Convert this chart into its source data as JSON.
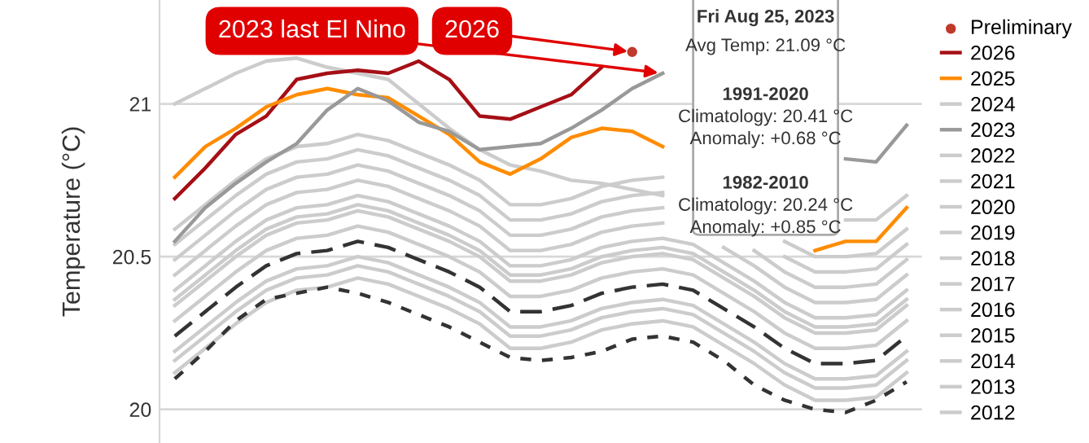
{
  "chart_data": {
    "type": "line",
    "ylabel": "Temperature (°C)",
    "categories": [
      null,
      null,
      null,
      null,
      null,
      null,
      null,
      null,
      null,
      null,
      null,
      null,
      null,
      null,
      null,
      null,
      null,
      null,
      null,
      null,
      null,
      null,
      null,
      null,
      null
    ],
    "ylim": [
      19.89,
      21.34
    ],
    "yticks": [
      20,
      20.5,
      21
    ],
    "grid": "y",
    "legend": "right",
    "tick_labels": "y",
    "series": [
      {
        "name": "Preliminary",
        "type": "scatter",
        "marker": "circle",
        "color": "#c0392b",
        "values": [
          null,
          null,
          null,
          null,
          null,
          null,
          null,
          null,
          null,
          null,
          null,
          null,
          null,
          null,
          null,
          21.17,
          null,
          null,
          null,
          null,
          null,
          null,
          null,
          null,
          null
        ]
      },
      {
        "name": "2026",
        "color": "#a50f15",
        "values": [
          20.69,
          20.79,
          20.9,
          20.96,
          21.08,
          21.1,
          21.11,
          21.1,
          21.14,
          21.08,
          20.96,
          20.95,
          20.99,
          21.03,
          21.12,
          null,
          null,
          null,
          null,
          null,
          null,
          null,
          null,
          null,
          null
        ]
      },
      {
        "name": "2025",
        "color": "#ff8c00",
        "values": [
          20.76,
          20.86,
          20.92,
          20.99,
          21.03,
          21.05,
          21.03,
          21.02,
          20.96,
          20.9,
          20.81,
          20.77,
          20.82,
          20.89,
          20.92,
          20.91,
          20.86,
          null,
          null,
          null,
          null,
          20.52,
          20.55,
          20.55,
          20.66
        ]
      },
      {
        "name": "2024",
        "color": "#cccccc",
        "values": [
          21.0,
          21.05,
          21.1,
          21.14,
          21.15,
          21.12,
          21.1,
          21.08,
          21.0,
          20.92,
          20.85,
          20.8,
          20.78,
          20.75,
          20.74,
          20.72,
          20.7,
          null,
          null,
          null,
          null,
          null,
          20.62,
          20.62,
          20.7
        ]
      },
      {
        "name": "2023",
        "color": "#999999",
        "values": [
          20.55,
          20.66,
          20.74,
          20.81,
          20.87,
          20.98,
          21.05,
          21.01,
          20.94,
          20.91,
          20.85,
          20.86,
          20.87,
          20.92,
          20.98,
          21.05,
          21.1,
          null,
          null,
          null,
          null,
          null,
          20.82,
          20.81,
          20.93
        ]
      },
      {
        "name": "2022",
        "color": "#cccccc",
        "values": [
          20.49,
          20.57,
          20.65,
          20.72,
          20.76,
          20.77,
          20.8,
          20.78,
          20.74,
          20.7,
          20.65,
          20.57,
          20.57,
          20.59,
          20.63,
          20.65,
          20.66,
          null,
          null,
          20.52,
          20.45,
          20.4,
          20.4,
          20.41,
          20.49
        ]
      },
      {
        "name": "2021",
        "color": "#cccccc",
        "values": [
          20.36,
          20.44,
          20.52,
          20.59,
          20.63,
          20.64,
          20.67,
          20.65,
          20.61,
          20.57,
          20.52,
          20.44,
          20.44,
          20.46,
          20.5,
          20.52,
          20.53,
          20.51,
          20.45,
          20.39,
          20.32,
          20.27,
          20.27,
          20.28,
          20.36
        ]
      },
      {
        "name": "2020",
        "color": "#cccccc",
        "values": [
          20.54,
          20.62,
          20.7,
          20.77,
          20.81,
          20.82,
          20.85,
          20.83,
          20.79,
          20.75,
          20.7,
          20.62,
          20.62,
          20.64,
          20.68,
          20.7,
          20.71,
          null,
          null,
          null,
          20.5,
          20.45,
          20.45,
          20.46,
          20.54
        ]
      },
      {
        "name": "2019",
        "color": "#cccccc",
        "values": [
          20.44,
          20.52,
          20.6,
          20.67,
          20.71,
          20.72,
          20.75,
          20.73,
          20.69,
          20.65,
          20.6,
          20.52,
          20.52,
          20.54,
          20.58,
          20.6,
          20.61,
          null,
          20.53,
          20.47,
          20.4,
          20.35,
          20.35,
          20.36,
          20.44
        ]
      },
      {
        "name": "2018",
        "color": "#cccccc",
        "values": [
          20.29,
          20.37,
          20.45,
          20.52,
          20.56,
          20.57,
          20.6,
          20.58,
          20.54,
          20.5,
          20.45,
          20.37,
          20.37,
          20.39,
          20.43,
          20.45,
          20.46,
          20.44,
          20.38,
          20.32,
          20.25,
          20.2,
          20.2,
          20.21,
          20.29
        ]
      },
      {
        "name": "2017",
        "color": "#cccccc",
        "values": [
          20.39,
          20.47,
          20.55,
          20.62,
          20.66,
          20.67,
          20.7,
          20.68,
          20.64,
          20.6,
          20.55,
          20.47,
          20.47,
          20.49,
          20.53,
          20.55,
          20.56,
          20.54,
          20.48,
          20.42,
          20.35,
          20.3,
          20.3,
          20.31,
          20.39
        ]
      },
      {
        "name": "2016",
        "color": "#cccccc",
        "values": [
          20.59,
          20.67,
          20.75,
          20.82,
          20.86,
          20.87,
          20.9,
          20.88,
          20.84,
          20.8,
          20.75,
          20.67,
          20.67,
          20.69,
          20.73,
          20.75,
          20.76,
          null,
          null,
          null,
          20.55,
          20.5,
          20.5,
          20.51,
          20.59
        ]
      },
      {
        "name": "2015",
        "color": "#cccccc",
        "values": [
          20.34,
          20.42,
          20.5,
          20.57,
          20.61,
          20.62,
          20.65,
          20.63,
          20.59,
          20.55,
          20.5,
          20.42,
          20.42,
          20.44,
          20.48,
          20.5,
          20.51,
          20.49,
          20.43,
          20.37,
          20.3,
          20.25,
          20.25,
          20.26,
          20.34
        ]
      },
      {
        "name": "2014",
        "color": "#cccccc",
        "values": [
          20.19,
          20.27,
          20.35,
          20.42,
          20.46,
          20.47,
          20.5,
          20.48,
          20.44,
          20.4,
          20.35,
          20.27,
          20.27,
          20.29,
          20.33,
          20.35,
          20.36,
          20.34,
          20.28,
          20.22,
          20.15,
          20.1,
          20.1,
          20.11,
          20.19
        ]
      },
      {
        "name": "2013",
        "color": "#cccccc",
        "values": [
          20.12,
          20.2,
          20.28,
          20.35,
          20.39,
          20.4,
          20.43,
          20.41,
          20.37,
          20.33,
          20.28,
          20.2,
          20.2,
          20.22,
          20.26,
          20.28,
          20.29,
          20.27,
          20.21,
          20.15,
          20.08,
          20.03,
          20.03,
          20.04,
          20.12
        ]
      },
      {
        "name": "2012",
        "color": "#cccccc",
        "values": [
          20.16,
          20.24,
          20.32,
          20.39,
          20.43,
          20.44,
          20.47,
          20.45,
          20.41,
          20.37,
          20.32,
          20.24,
          20.24,
          20.26,
          20.3,
          20.32,
          20.33,
          20.31,
          20.25,
          20.19,
          20.12,
          20.07,
          20.07,
          20.08,
          20.16
        ]
      },
      {
        "color": "#333333",
        "line_style": "dashed",
        "values": [
          20.24,
          20.32,
          20.4,
          20.47,
          20.51,
          20.52,
          20.55,
          20.53,
          20.49,
          20.45,
          20.4,
          20.32,
          20.32,
          20.34,
          20.38,
          20.4,
          20.41,
          20.39,
          20.33,
          20.27,
          20.2,
          20.15,
          20.15,
          20.16,
          20.24
        ]
      },
      {
        "color": "#333333",
        "line_style": "dotted",
        "values": [
          20.1,
          20.19,
          20.29,
          20.36,
          20.38,
          20.4,
          20.38,
          20.35,
          20.31,
          20.27,
          20.22,
          20.17,
          20.16,
          20.17,
          20.19,
          20.23,
          20.24,
          20.22,
          20.16,
          20.08,
          20.03,
          20.0,
          19.99,
          20.03,
          20.09
        ]
      }
    ],
    "annotations": [
      "2026",
      "2023 last El Nino",
      "Fri Aug 25, 2023",
      "Avg Temp: 21.09 °C",
      "1991-2020",
      "Climatology: 20.41 °C",
      "Anomaly: +0.68 °C",
      "1982-2010",
      "Climatology: 20.24 °C",
      "Anomaly: +0.85 °C"
    ]
  }
}
